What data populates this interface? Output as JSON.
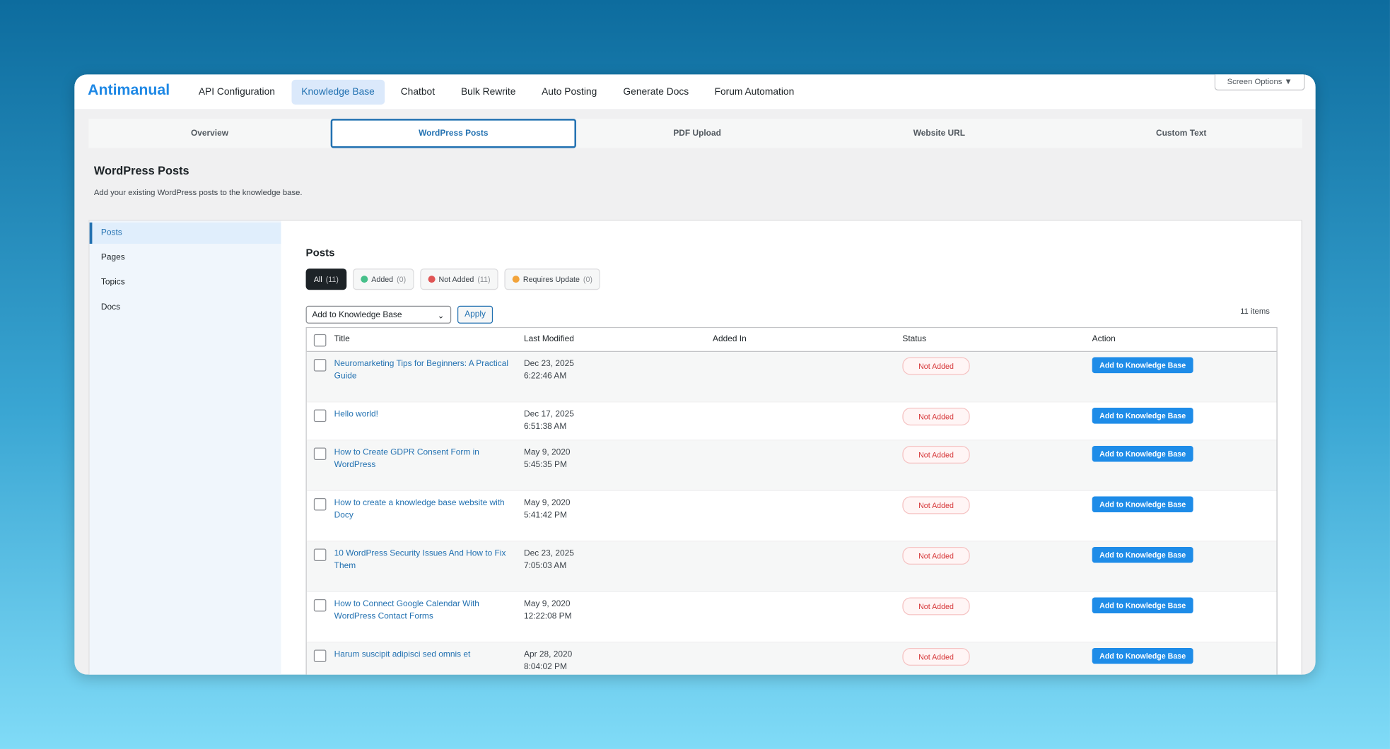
{
  "brand": "Antimanual",
  "nav": [
    "API Configuration",
    "Knowledge Base",
    "Chatbot",
    "Bulk Rewrite",
    "Auto Posting",
    "Generate Docs",
    "Forum Automation"
  ],
  "screen_options": "Screen Options ▼",
  "tabs": [
    "Overview",
    "WordPress Posts",
    "PDF Upload",
    "Website URL",
    "Custom Text"
  ],
  "section": {
    "title": "WordPress Posts",
    "description": "Add your existing WordPress posts to the knowledge base."
  },
  "sidebar": [
    "Posts",
    "Pages",
    "Topics",
    "Docs"
  ],
  "panel_title": "Posts",
  "filters": [
    {
      "label": "All",
      "count": "(11)"
    },
    {
      "label": "Added",
      "count": "(0)"
    },
    {
      "label": "Not Added",
      "count": "(11)"
    },
    {
      "label": "Requires Update",
      "count": "(0)"
    }
  ],
  "bulk_action": "Add to Knowledge Base",
  "apply": "Apply",
  "items": "11 items",
  "columns": [
    "Title",
    "Last Modified",
    "Added In",
    "Status",
    "Action"
  ],
  "rows": [
    {
      "title": "Neuromarketing Tips for Beginners: A Practical Guide",
      "date": "Dec 23, 2025",
      "time": "6:22:46 AM",
      "status": "Not Added",
      "action": "Add to Knowledge Base"
    },
    {
      "title": "Hello world!",
      "date": "Dec 17, 2025",
      "time": "6:51:38 AM",
      "status": "Not Added",
      "action": "Add to Knowledge Base"
    },
    {
      "title": "How to Create GDPR Consent Form in WordPress",
      "date": "May 9, 2020",
      "time": "5:45:35 PM",
      "status": "Not Added",
      "action": "Add to Knowledge Base"
    },
    {
      "title": "How to create a knowledge base website with Docy",
      "date": "May 9, 2020",
      "time": "5:41:42 PM",
      "status": "Not Added",
      "action": "Add to Knowledge Base"
    },
    {
      "title": "10 WordPress Security Issues And How to Fix Them",
      "date": "Dec 23, 2025",
      "time": "7:05:03 AM",
      "status": "Not Added",
      "action": "Add to Knowledge Base"
    },
    {
      "title": "How to Connect Google Calendar With WordPress Contact Forms",
      "date": "May 9, 2020",
      "time": "12:22:08 PM",
      "status": "Not Added",
      "action": "Add to Knowledge Base"
    },
    {
      "title": "Harum suscipit adipisci sed omnis et",
      "date": "Apr 28, 2020",
      "time": "8:04:02 PM",
      "status": "Not Added",
      "action": "Add to Knowledge Base"
    }
  ]
}
